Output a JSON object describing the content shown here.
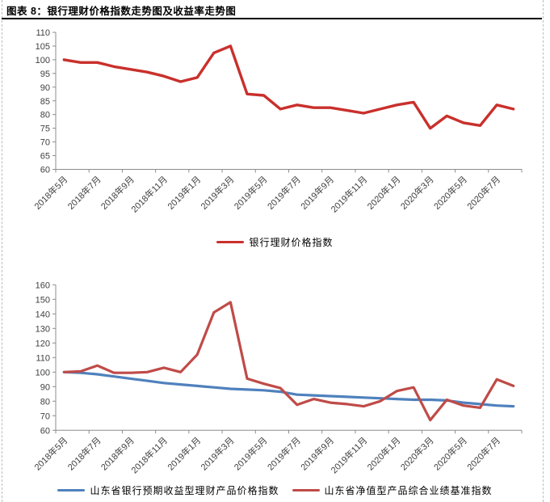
{
  "header": {
    "title": "图表 8：银行理财价格指数走势图及收益率走势图"
  },
  "chart_data": [
    {
      "type": "line",
      "title": "",
      "categories": [
        "2018年5月",
        "2018年6月",
        "2018年7月",
        "2018年8月",
        "2018年9月",
        "2018年10月",
        "2018年11月",
        "2018年12月",
        "2019年1月",
        "2019年2月",
        "2019年3月",
        "2019年4月",
        "2019年5月",
        "2019年6月",
        "2019年7月",
        "2019年8月",
        "2019年9月",
        "2019年10月",
        "2019年11月",
        "2019年12月",
        "2020年1月",
        "2020年2月",
        "2020年3月",
        "2020年4月",
        "2020年5月",
        "2020年6月",
        "2020年7月",
        "2020年8月"
      ],
      "x_tick_labels": [
        "2018年5月",
        "2018年7月",
        "2018年9月",
        "2018年11月",
        "2019年1月",
        "2019年3月",
        "2019年5月",
        "2019年7月",
        "2019年9月",
        "2019年11月",
        "2020年1月",
        "2020年3月",
        "2020年5月",
        "2020年7月"
      ],
      "x_tick_step": 2,
      "ylim": [
        60,
        110
      ],
      "ystep": 5,
      "grid": false,
      "legend_position": "bottom-center",
      "series": [
        {
          "name": "银行理财价格指数",
          "color": "#c9302c",
          "values": [
            100,
            99,
            99,
            97.5,
            96.5,
            95.5,
            94,
            92,
            93.5,
            102.5,
            105,
            87.5,
            87,
            82,
            83.5,
            82.5,
            82.5,
            81.5,
            80.5,
            82,
            83.5,
            84.5,
            75,
            79.5,
            77,
            76,
            83.5,
            82
          ]
        }
      ]
    },
    {
      "type": "line",
      "title": "",
      "categories": [
        "2018年5月",
        "2018年6月",
        "2018年7月",
        "2018年8月",
        "2018年9月",
        "2018年10月",
        "2018年11月",
        "2018年12月",
        "2019年1月",
        "2019年2月",
        "2019年3月",
        "2019年4月",
        "2019年5月",
        "2019年6月",
        "2019年7月",
        "2019年8月",
        "2019年9月",
        "2019年10月",
        "2019年11月",
        "2019年12月",
        "2020年1月",
        "2020年2月",
        "2020年3月",
        "2020年4月",
        "2020年5月",
        "2020年6月",
        "2020年7月",
        "2020年8月"
      ],
      "x_tick_labels": [
        "2018年5月",
        "2018年7月",
        "2018年9月",
        "2018年11月",
        "2019年1月",
        "2019年3月",
        "2019年5月",
        "2019年7月",
        "2019年9月",
        "2019年11月",
        "2020年1月",
        "2020年3月",
        "2020年5月",
        "2020年7月"
      ],
      "x_tick_step": 2,
      "ylim": [
        60,
        160
      ],
      "ystep": 10,
      "grid": false,
      "legend_position": "bottom-center",
      "series": [
        {
          "name": "山东省银行预期收益型理财产品价格指数",
          "color": "#4f81bd",
          "values": [
            100,
            99.5,
            98.5,
            97,
            95.5,
            94,
            92.5,
            91.5,
            90.5,
            89.5,
            88.5,
            88,
            87.5,
            86.5,
            84.5,
            84,
            83.5,
            83,
            82.5,
            82,
            81.5,
            81,
            81,
            80.5,
            79,
            78,
            77,
            76.5
          ]
        },
        {
          "name": "山东省净值型产品综合业绩基准指数",
          "color": "#bf4b48",
          "values": [
            100,
            100.5,
            104.5,
            99.5,
            99.5,
            100,
            103,
            100,
            112,
            141,
            148,
            95.5,
            92,
            89,
            77.5,
            81.5,
            79,
            78,
            76.5,
            80,
            87,
            89.5,
            67,
            81,
            77,
            75.5,
            95,
            90.5
          ]
        }
      ]
    }
  ],
  "styles": {
    "axis_color": "#8c8c8c",
    "label_color": "#3f3f3f",
    "border_color": "#bcbcbc",
    "rule_color": "#000000"
  }
}
